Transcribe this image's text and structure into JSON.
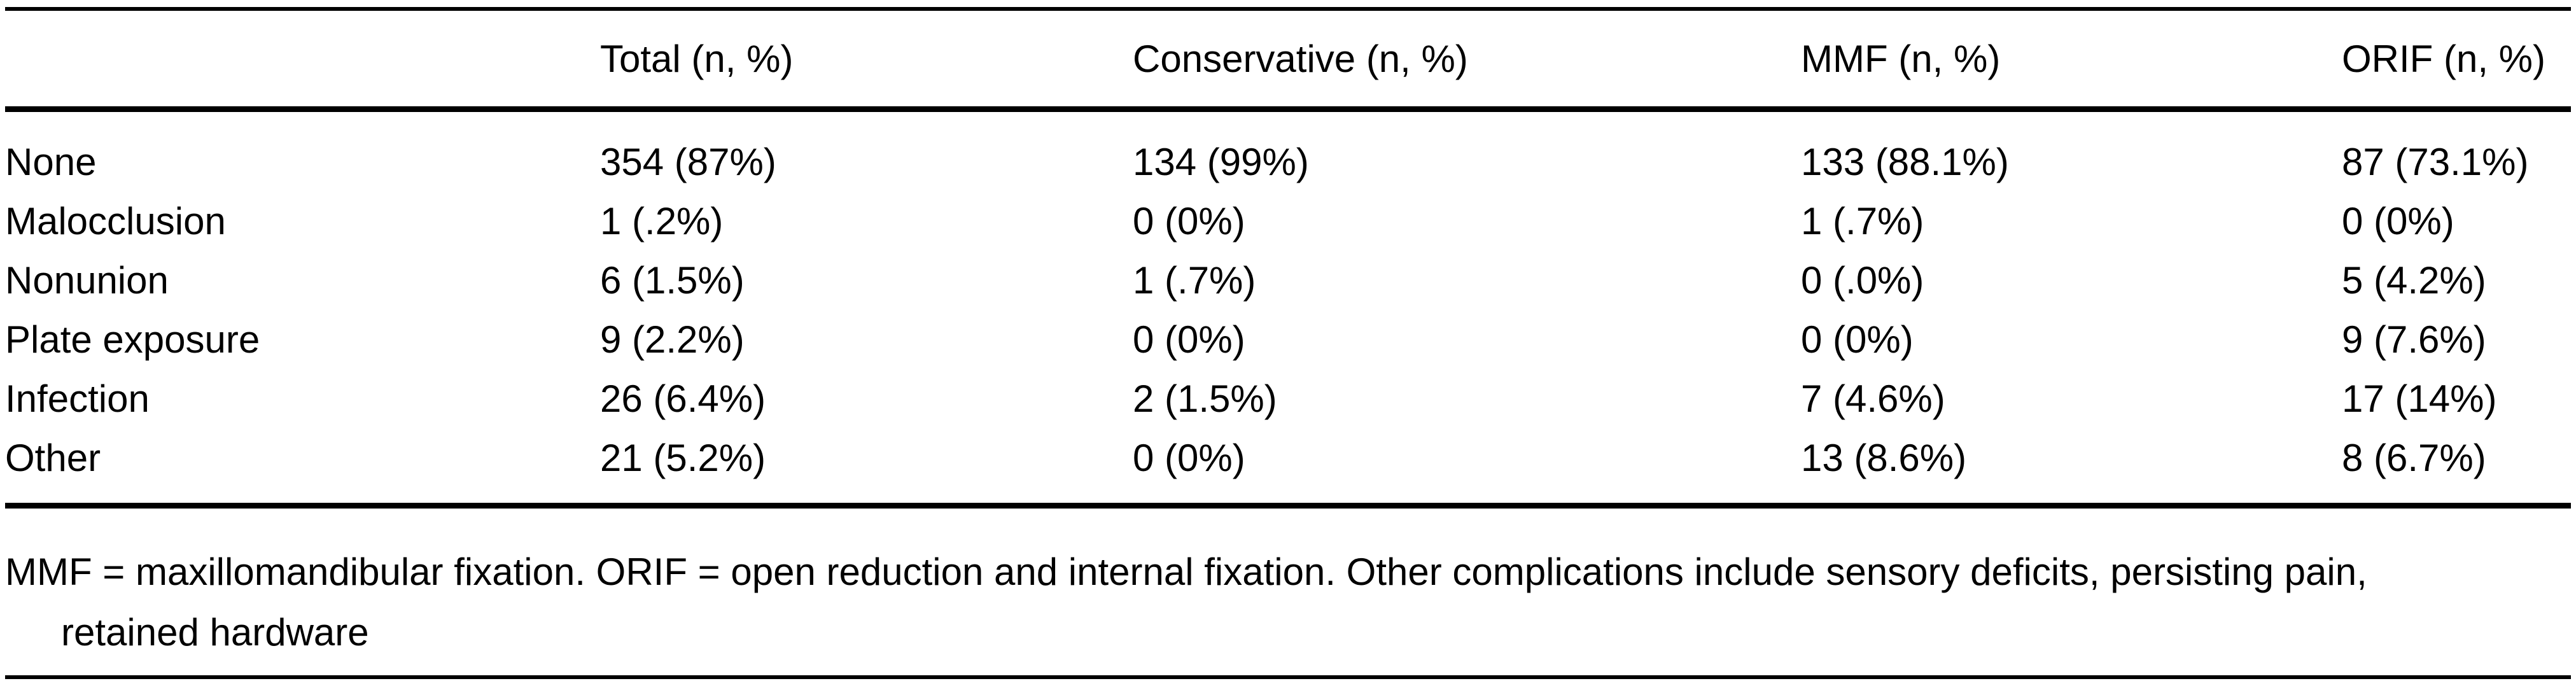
{
  "colors": {
    "text": "#000000",
    "background": "#ffffff",
    "rule": "#000000"
  },
  "table": {
    "columns": [
      "",
      "Total (n, %)",
      "Conservative (n, %)",
      "MMF (n, %)",
      "ORIF (n, %)"
    ],
    "rows": [
      {
        "label": "None",
        "total": "354 (87%)",
        "conservative": "134 (99%)",
        "mmf": "133 (88.1%)",
        "orif": "87 (73.1%)"
      },
      {
        "label": "Malocclusion",
        "total": "1 (.2%)",
        "conservative": "0 (0%)",
        "mmf": "1 (.7%)",
        "orif": "0 (0%)"
      },
      {
        "label": "Nonunion",
        "total": "6 (1.5%)",
        "conservative": "1 (.7%)",
        "mmf": "0 (.0%)",
        "orif": "5 (4.2%)"
      },
      {
        "label": "Plate exposure",
        "total": "9 (2.2%)",
        "conservative": "0 (0%)",
        "mmf": "0 (0%)",
        "orif": "9 (7.6%)"
      },
      {
        "label": "Infection",
        "total": "26 (6.4%)",
        "conservative": "2 (1.5%)",
        "mmf": "7 (4.6%)",
        "orif": "17 (14%)"
      },
      {
        "label": "Other",
        "total": "21 (5.2%)",
        "conservative": "0 (0%)",
        "mmf": "13 (8.6%)",
        "orif": "8 (6.7%)"
      }
    ],
    "footnote": "MMF = maxillomandibular fixation. ORIF = open reduction and internal fixation. Other complications include sensory deficits, persisting pain, retained hardware"
  }
}
